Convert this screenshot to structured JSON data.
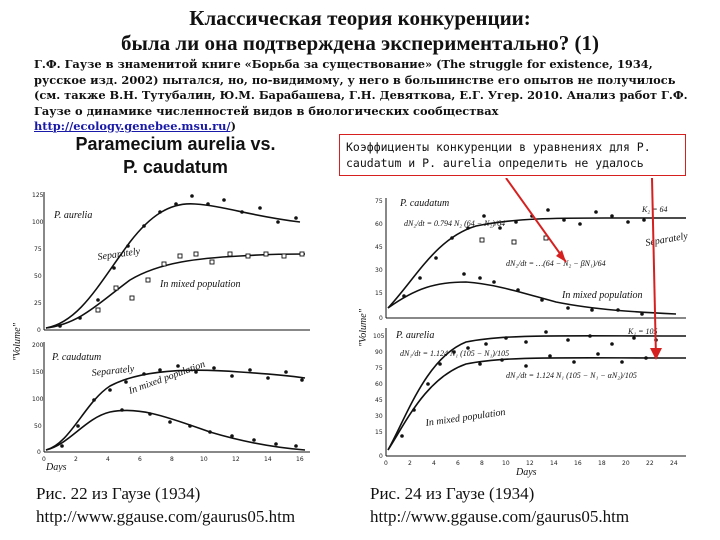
{
  "title": {
    "line1": "Классическая теория конкуренции:",
    "line2": "была ли она подтверждена экспериментально? (1)"
  },
  "intro": {
    "text": "Г.Ф. Гаузе в знаменитой книге «Борьба за существование» (The struggle for existence, 1934, русское изд. 2002) пытался, но, по-видимому, у него в большинстве его опытов не получилось (см. также В.Н. Тутубалин, Ю.М. Барабашева, Г.Н. Девяткова, Е.Г. Угер. 2010. Анализ работ Г.Ф. Гаузе о динамике численностей видов в биологических сообществах ",
    "link": "http://ecology.genebee.msu.ru/",
    "tail": ")"
  },
  "left_heading": {
    "line1": "Paramecium aurelia vs.",
    "line2": "P. caudatum"
  },
  "callout": {
    "text": "Коэффициенты конкуренции в уравнениях для P. caudatum и P. aurelia определить не удалось",
    "border_color": "#d62020"
  },
  "fig_left": {
    "ylabel": "\"Volume\"",
    "xlabel": "Days",
    "top_panel_label": "P. aurelia",
    "bottom_panel_label": "P. caudatum",
    "separately": "Separately",
    "mixed": "In mixed population",
    "yticks_top": [
      "125",
      "100",
      "75",
      "50",
      "25",
      "0"
    ],
    "yticks_bottom": [
      "200",
      "150",
      "100",
      "50",
      "0"
    ],
    "xticks": [
      "0",
      "2",
      "4",
      "6",
      "8",
      "10",
      "12",
      "14",
      "16"
    ]
  },
  "fig_right": {
    "ylabel": "\"Volume\"",
    "xlabel": "Days",
    "top_panel_label": "P. caudatum",
    "bottom_panel_label": "P. aurelia",
    "separately": "Separately",
    "mixed_top": "In mixed population",
    "mixed_bottom": "In mixed population",
    "k_top": "K₂ = 64",
    "k_bottom": "K₁ = 105",
    "eq_top_1": "dN₂/dt = 0.794 N₂ (64 − N₂)/64",
    "eq_top_2": "dN₂/dt = …(64 − N₂ − βN₁)/64",
    "eq_bottom_1": "dN₁/dt = 1.124 N₁ (105 − N₁)/105",
    "eq_bottom_2": "dN₁/dt = 1.124 N₁ (105 − N₁ − αN₂)/105",
    "yticks_top": [
      "75",
      "60",
      "45",
      "30",
      "15",
      "0"
    ],
    "yticks_bottom": [
      "105",
      "90",
      "75",
      "60",
      "45",
      "30",
      "15",
      "0"
    ],
    "xticks": [
      "0",
      "2",
      "4",
      "6",
      "8",
      "10",
      "12",
      "14",
      "16",
      "18",
      "20",
      "22",
      "24"
    ],
    "arrow_color": "#d62020"
  },
  "captions": {
    "left_line1": "Рис. 22 из Гаузе (1934)",
    "left_line2": "http://www.ggause.com/gaurus05.htm",
    "right_line1": "Рис. 24 из Гаузе (1934)",
    "right_line2": "http://www.ggause.com/gaurus05.htm"
  }
}
